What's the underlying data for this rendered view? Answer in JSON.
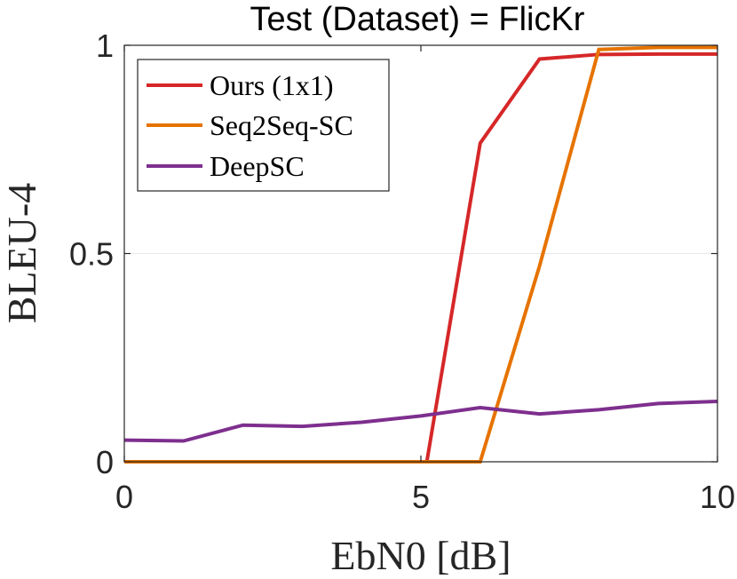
{
  "chart_data": {
    "type": "line",
    "title": "Test (Dataset) = FlicKr",
    "xlabel": "EbN0 [dB]",
    "ylabel": "BLEU-4",
    "xlim": [
      0,
      10
    ],
    "ylim": [
      0,
      1
    ],
    "xticks": [
      "0",
      "5",
      "10"
    ],
    "yticks": [
      "0",
      "0.5",
      "1"
    ],
    "xtick_values": [
      0,
      5,
      10
    ],
    "ytick_values": [
      0,
      0.5,
      1
    ],
    "grid": true,
    "legend_position": "top-left",
    "x": [
      0,
      1,
      2,
      3,
      4,
      5,
      6,
      7,
      8,
      9,
      10
    ],
    "series": [
      {
        "name": "Ours (1x1)",
        "color": "#d62728",
        "x": [
          0,
          1,
          2,
          3,
          4,
          5,
          5.1,
          6,
          7,
          8,
          9,
          10
        ],
        "values": [
          0,
          0,
          0,
          0,
          0,
          0,
          0,
          0.765,
          0.967,
          0.978,
          0.979,
          0.979
        ]
      },
      {
        "name": "Seq2Seq-SC",
        "color": "#e67300",
        "x": [
          0,
          1,
          2,
          3,
          4,
          5,
          6,
          7,
          8,
          9,
          10
        ],
        "values": [
          0,
          0,
          0,
          0,
          0,
          0,
          0,
          0.47,
          0.99,
          0.995,
          0.995
        ]
      },
      {
        "name": "DeepSC",
        "color": "#7e2f8e",
        "x": [
          0,
          1,
          2,
          3,
          4,
          5,
          6,
          7,
          8,
          9,
          10
        ],
        "values": [
          0.052,
          0.05,
          0.088,
          0.085,
          0.095,
          0.11,
          0.13,
          0.115,
          0.125,
          0.14,
          0.145
        ]
      }
    ]
  }
}
